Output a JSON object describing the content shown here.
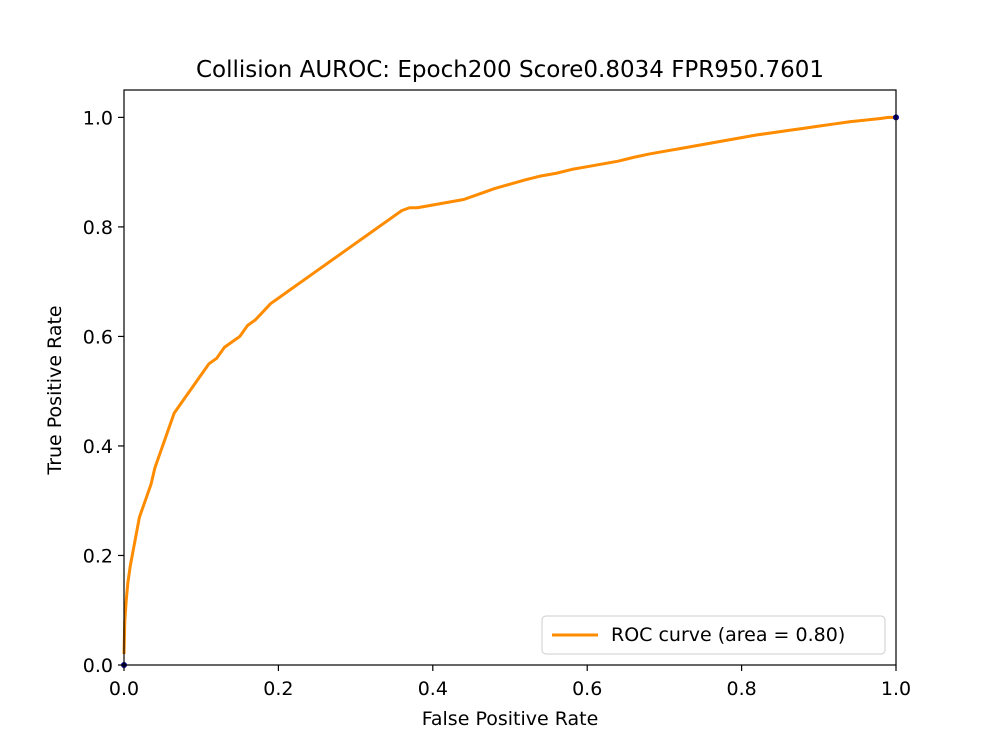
{
  "chart_data": {
    "type": "line",
    "title": "Collision AUROC: Epoch200 Score0.8034  FPR950.7601",
    "xlabel": "False Positive Rate",
    "ylabel": "True Positive Rate",
    "xlim": [
      0.0,
      1.0
    ],
    "ylim": [
      0.0,
      1.05
    ],
    "xticks": [
      "0.0",
      "0.2",
      "0.4",
      "0.6",
      "0.8",
      "1.0"
    ],
    "yticks": [
      "0.0",
      "0.2",
      "0.4",
      "0.6",
      "0.8",
      "1.0"
    ],
    "grid": false,
    "legend_position": "lower-right",
    "series": [
      {
        "name": "ROC curve (area = 0.80)",
        "color": "#ff8c00",
        "x": [
          0.0,
          0.001,
          0.003,
          0.005,
          0.008,
          0.012,
          0.016,
          0.02,
          0.025,
          0.03,
          0.035,
          0.04,
          0.045,
          0.05,
          0.055,
          0.06,
          0.065,
          0.07,
          0.075,
          0.08,
          0.09,
          0.1,
          0.11,
          0.12,
          0.13,
          0.14,
          0.15,
          0.16,
          0.17,
          0.18,
          0.19,
          0.2,
          0.21,
          0.22,
          0.23,
          0.24,
          0.25,
          0.26,
          0.27,
          0.28,
          0.29,
          0.3,
          0.31,
          0.32,
          0.33,
          0.34,
          0.35,
          0.36,
          0.37,
          0.38,
          0.4,
          0.42,
          0.44,
          0.46,
          0.48,
          0.5,
          0.52,
          0.54,
          0.56,
          0.58,
          0.6,
          0.62,
          0.64,
          0.66,
          0.68,
          0.7,
          0.72,
          0.74,
          0.76,
          0.78,
          0.8,
          0.82,
          0.84,
          0.86,
          0.88,
          0.9,
          0.92,
          0.94,
          0.96,
          0.98,
          0.99,
          1.0
        ],
        "y": [
          0.02,
          0.08,
          0.12,
          0.15,
          0.18,
          0.21,
          0.24,
          0.27,
          0.29,
          0.31,
          0.33,
          0.36,
          0.38,
          0.4,
          0.42,
          0.44,
          0.46,
          0.47,
          0.48,
          0.49,
          0.51,
          0.53,
          0.55,
          0.56,
          0.58,
          0.59,
          0.6,
          0.62,
          0.63,
          0.645,
          0.66,
          0.67,
          0.68,
          0.69,
          0.7,
          0.71,
          0.72,
          0.73,
          0.74,
          0.75,
          0.76,
          0.77,
          0.78,
          0.79,
          0.8,
          0.81,
          0.82,
          0.83,
          0.835,
          0.835,
          0.84,
          0.845,
          0.85,
          0.86,
          0.87,
          0.878,
          0.886,
          0.893,
          0.898,
          0.905,
          0.91,
          0.915,
          0.92,
          0.927,
          0.933,
          0.938,
          0.943,
          0.948,
          0.953,
          0.958,
          0.963,
          0.968,
          0.972,
          0.976,
          0.98,
          0.984,
          0.988,
          0.992,
          0.995,
          0.998,
          1.0,
          1.0
        ]
      }
    ]
  }
}
